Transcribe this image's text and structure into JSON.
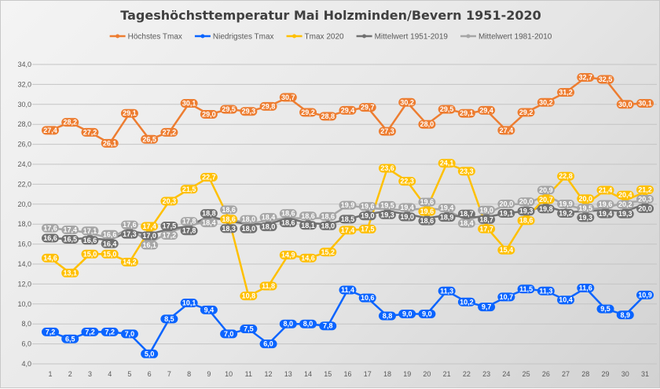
{
  "chart_data": {
    "type": "line",
    "title": "Tageshöchsttemperatur Mai Holzminden/Bevern 1951-2020",
    "xlabel": "",
    "ylabel": "",
    "ylim": [
      4,
      34
    ],
    "yticks": [
      "4,0",
      "6,0",
      "8,0",
      "10,0",
      "12,0",
      "14,0",
      "16,0",
      "18,0",
      "20,0",
      "22,0",
      "24,0",
      "26,0",
      "28,0",
      "30,0",
      "32,0",
      "34,0"
    ],
    "grid": true,
    "legend": "top",
    "x": [
      1,
      2,
      3,
      4,
      5,
      6,
      7,
      8,
      9,
      10,
      11,
      12,
      13,
      14,
      15,
      16,
      17,
      18,
      19,
      20,
      21,
      22,
      23,
      24,
      25,
      26,
      27,
      28,
      29,
      30,
      31
    ],
    "series": [
      {
        "name": "Mittelwert 1981-2010",
        "color": "#a6a6a6",
        "values": [
          17.6,
          17.4,
          17.1,
          16.6,
          17.6,
          16.1,
          17.2,
          17.8,
          18.4,
          18.6,
          18.0,
          18.4,
          18.6,
          18.6,
          18.6,
          19.9,
          19.6,
          19.5,
          19.4,
          19.6,
          19.4,
          18.4,
          19.0,
          20.0,
          20.0,
          20.9,
          19.9,
          19.5,
          19.6,
          20.2,
          20.3
        ]
      },
      {
        "name": "Mittelwert 1951-2019",
        "color": "#707070",
        "values": [
          16.6,
          16.5,
          16.6,
          16.4,
          17.3,
          17.0,
          17.5,
          17.8,
          18.8,
          18.3,
          18.0,
          18.0,
          18.6,
          18.1,
          18.0,
          18.5,
          19.0,
          19.3,
          19.0,
          18.6,
          18.9,
          18.7,
          18.7,
          19.1,
          19.3,
          19.8,
          19.2,
          19.3,
          19.4,
          19.3,
          20.0
        ]
      },
      {
        "name": "Tmax 2020",
        "color": "#ffc000",
        "values": [
          14.6,
          13.1,
          15.0,
          15.0,
          14.2,
          17.4,
          20.3,
          21.5,
          22.7,
          18.6,
          10.8,
          11.8,
          14.9,
          14.6,
          15.2,
          17.4,
          17.5,
          23.6,
          22.3,
          19.6,
          24.1,
          23.3,
          17.7,
          15.4,
          18.6,
          20.7,
          22.8,
          20.0,
          21.4,
          20.4,
          21.2
        ]
      },
      {
        "name": "Niedrigstes Tmax",
        "color": "#0a64ff",
        "values": [
          7.2,
          6.5,
          7.2,
          7.2,
          7.0,
          5.0,
          8.5,
          10.1,
          9.4,
          7.0,
          7.5,
          6.0,
          8.0,
          8.0,
          7.8,
          11.4,
          10.6,
          8.8,
          9.0,
          9.0,
          11.3,
          10.2,
          9.7,
          10.7,
          11.5,
          11.3,
          10.4,
          11.6,
          9.5,
          8.9,
          10.9
        ]
      },
      {
        "name": "Höchstes Tmax",
        "color": "#ed7d31",
        "values": [
          27.4,
          28.2,
          27.2,
          26.1,
          29.1,
          26.5,
          27.2,
          30.1,
          29.0,
          29.5,
          29.3,
          29.8,
          30.7,
          29.2,
          28.8,
          29.4,
          29.7,
          27.3,
          30.2,
          28.0,
          29.5,
          29.1,
          29.4,
          27.4,
          29.2,
          30.2,
          31.2,
          32.7,
          32.5,
          30.0,
          30.1
        ]
      }
    ],
    "legend_order": [
      "Höchstes Tmax",
      "Niedrigstes Tmax",
      "Tmax 2020",
      "Mittelwert 1951-2019",
      "Mittelwert 1981-2010"
    ]
  }
}
